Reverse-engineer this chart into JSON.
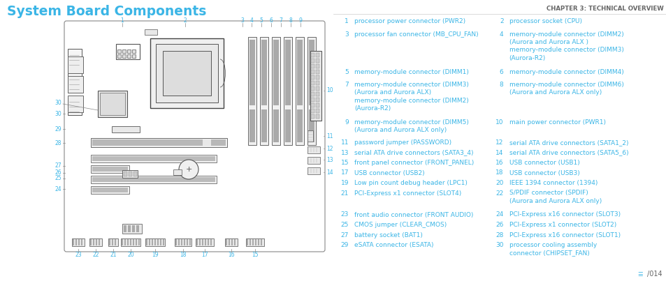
{
  "title": "System Board Components",
  "chapter_header": "CHAPTER 3: TECHNICAL OVERVIEW",
  "page_num": "014",
  "title_color": "#3ab5e6",
  "text_color": "#3ab5e6",
  "header_color": "#666666",
  "bg_color": "#ffffff",
  "entries_left": [
    {
      "num": "1",
      "text": "processor power connector (PWR2)",
      "lines": 1
    },
    {
      "num": "3",
      "text": "processor fan connector (MB_CPU_FAN)",
      "lines": 1
    },
    {
      "num": "5",
      "text": "memory-module connector (DIMM1)",
      "lines": 1
    },
    {
      "num": "7",
      "text": "memory-module connector (DIMM3)\n(Aurora and Aurora ALX)\nmemory-module connector (DIMM2)\n(Aurora-R2)",
      "lines": 4
    },
    {
      "num": "9",
      "text": "memory-module connector (DIMM5)\n(Aurora and Aurora ALX only)",
      "lines": 2
    },
    {
      "num": "11",
      "text": "password jumper (PASSWORD)",
      "lines": 1
    },
    {
      "num": "13",
      "text": "serial ATA drive connectors (SATA3_4)",
      "lines": 1
    },
    {
      "num": "15",
      "text": "front panel connector (FRONT_PANEL)",
      "lines": 1
    },
    {
      "num": "17",
      "text": "USB connector (USB2)",
      "lines": 1
    },
    {
      "num": "19",
      "text": "Low pin count debug header (LPC1)",
      "lines": 1
    },
    {
      "num": "21",
      "text": "PCI-Express x1 connector (SLOT4)",
      "lines": 1
    },
    {
      "num": "23",
      "text": "front audio connector (FRONT AUDIO)",
      "lines": 1
    },
    {
      "num": "25",
      "text": "CMOS jumper (CLEAR_CMOS)",
      "lines": 1
    },
    {
      "num": "27",
      "text": "battery socket (BAT1)",
      "lines": 1
    },
    {
      "num": "29",
      "text": "eSATA connector (ESATA)",
      "lines": 1
    }
  ],
  "entries_right": [
    {
      "num": "2",
      "text": "processor socket (CPU)",
      "lines": 1
    },
    {
      "num": "4",
      "text": "memory-module connector (DIMM2)\n(Aurora and Aurora ALX )\nmemory-module connector (DIMM3)\n(Aurora-R2)",
      "lines": 4
    },
    {
      "num": "6",
      "text": "memory-module connector (DIMM4)",
      "lines": 1
    },
    {
      "num": "8",
      "text": "memory-module connector (DIMM6)\n(Aurora and Aurora ALX only)",
      "lines": 2
    },
    {
      "num": "10",
      "text": "main power connector (PWR1)",
      "lines": 1
    },
    {
      "num": "12",
      "text": "serial ATA drive connectors (SATA1_2)",
      "lines": 1
    },
    {
      "num": "14",
      "text": "serial ATA drive connectors (SATA5_6)",
      "lines": 1
    },
    {
      "num": "16",
      "text": "USB connector (USB1)",
      "lines": 1
    },
    {
      "num": "18",
      "text": "USB connector (USB3)",
      "lines": 1
    },
    {
      "num": "20",
      "text": "IEEE 1394 connector (1394)",
      "lines": 1
    },
    {
      "num": "22",
      "text": "S/PDIF connector (SPDIF)\n(Aurora and Aurora ALX only)",
      "lines": 2
    },
    {
      "num": "24",
      "text": "PCI-Express x16 connector (SLOT3)",
      "lines": 1
    },
    {
      "num": "26",
      "text": "PCI-Express x1 connector (SLOT2)",
      "lines": 1
    },
    {
      "num": "28",
      "text": "PCI-Express x16 connector (SLOT1)",
      "lines": 1
    },
    {
      "num": "30",
      "text": "processor cooling assembly\nconnector (CHIPSET_FAN)",
      "lines": 2
    }
  ]
}
